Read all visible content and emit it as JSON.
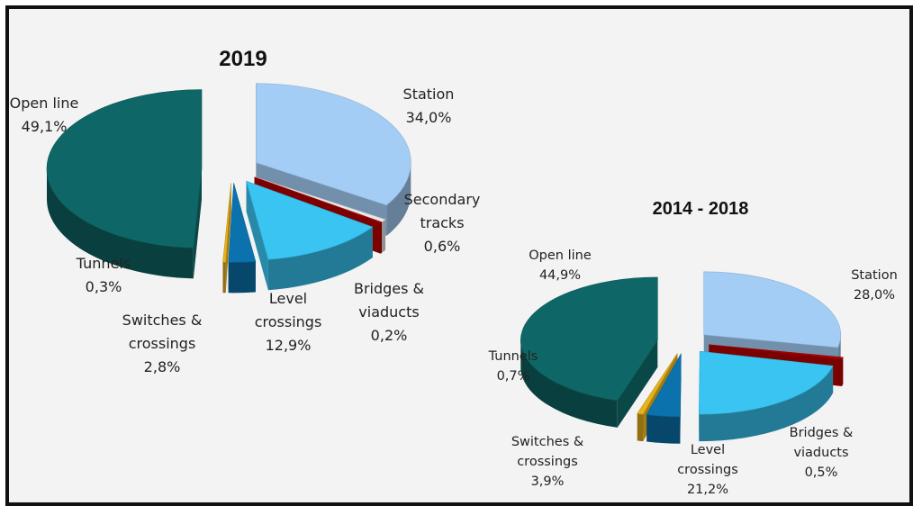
{
  "chart_data": [
    {
      "type": "pie",
      "title": "2019",
      "slices": [
        {
          "label_lines": [
            "Station",
            "34,0%"
          ],
          "name": "Station",
          "value": 34.0,
          "color": "#a3cdf5"
        },
        {
          "label_lines": [
            "Secondary",
            "tracks",
            "0,6%"
          ],
          "name": "Secondary tracks",
          "value": 0.6,
          "color": "#e8e8e8"
        },
        {
          "label_lines": [
            "Bridges &",
            "viaducts",
            "0,2%"
          ],
          "name": "Bridges & viaducts",
          "value": 0.2,
          "color": "#b00000"
        },
        {
          "label_lines": [
            "Level",
            "crossings",
            "12,9%"
          ],
          "name": "Level crossings",
          "value": 12.9,
          "color": "#39c4f2"
        },
        {
          "label_lines": [
            "Switches &",
            "crossings",
            "2,8%"
          ],
          "name": "Switches & crossings",
          "value": 2.8,
          "color": "#0b72ad"
        },
        {
          "label_lines": [
            "Tunnels",
            "0,3%"
          ],
          "name": "Tunnels",
          "value": 0.3,
          "color": "#e8b21c"
        },
        {
          "label_lines": [
            "Open line",
            "49,1%"
          ],
          "name": "Open line",
          "value": 49.1,
          "color": "#0e6766"
        }
      ]
    },
    {
      "type": "pie",
      "title": "2014 - 2018",
      "slices": [
        {
          "label_lines": [
            "Station",
            "28,0%"
          ],
          "name": "Station",
          "value": 28.0,
          "color": "#a3cdf5"
        },
        {
          "label_lines": [
            "Bridges &",
            "viaducts",
            "0,5%"
          ],
          "name": "Bridges & viaducts",
          "value": 0.5,
          "color": "#b00000"
        },
        {
          "label_lines": [
            "Level",
            "crossings",
            "21,2%"
          ],
          "name": "Level crossings",
          "value": 21.2,
          "color": "#39c4f2"
        },
        {
          "label_lines": [
            "Switches &",
            "crossings",
            "3,9%"
          ],
          "name": "Switches & crossings",
          "value": 3.9,
          "color": "#0b72ad"
        },
        {
          "label_lines": [
            "Tunnels",
            "0,7%"
          ],
          "name": "Tunnels",
          "value": 0.7,
          "color": "#e8b21c"
        },
        {
          "label_lines": [
            "Open line",
            "44,9%"
          ],
          "name": "Open line",
          "value": 44.9,
          "color": "#0e6766"
        }
      ]
    }
  ]
}
